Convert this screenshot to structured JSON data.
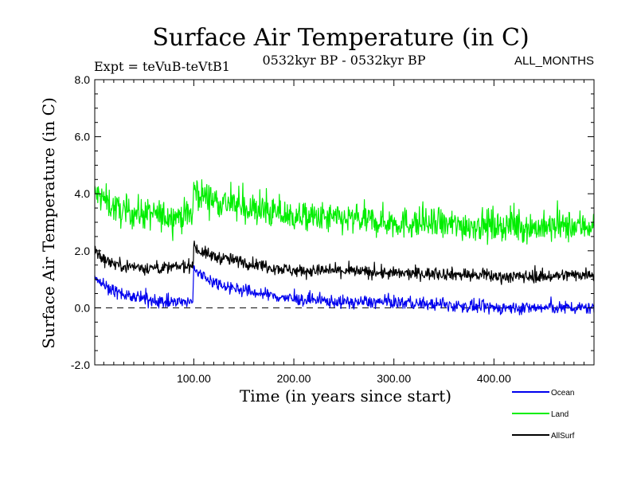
{
  "chart_data": {
    "type": "line",
    "title": "Surface Air Temperature (in C)",
    "subtitle": "0532kyr BP - 0532kyr BP",
    "expt_label": "Expt = teVuB-teVtB1",
    "months_label": "ALL_MONTHS",
    "xlabel": "Time (in years since start)",
    "ylabel": "Surface Air Temperature (in C)",
    "xlim": [
      1,
      500
    ],
    "ylim": [
      -2.0,
      8.0
    ],
    "x_ticks": [
      100,
      200,
      300,
      400
    ],
    "x_tick_labels": [
      "100.00",
      "200.00",
      "300.00",
      "400.00"
    ],
    "y_ticks": [
      -2,
      0,
      2,
      4,
      6,
      8
    ],
    "y_tick_labels": [
      "-2.0",
      "0.0",
      "2.0",
      "4.0",
      "6.0",
      "8.0"
    ],
    "reference_line": 0.0,
    "series": [
      {
        "name": "Land",
        "color": "#00ee00",
        "description": "annual values, ~3.5 early, jump at year 100, declining to ~2.9",
        "x": [
          1,
          10,
          25,
          50,
          75,
          99,
          100,
          105,
          120,
          150,
          200,
          250,
          300,
          350,
          400,
          450,
          500
        ],
        "values": [
          4.0,
          3.8,
          3.4,
          3.3,
          3.2,
          3.3,
          4.2,
          4.0,
          3.8,
          3.5,
          3.2,
          3.1,
          3.0,
          2.9,
          2.9,
          2.8,
          2.9
        ],
        "noise": 0.55
      },
      {
        "name": "AllSurf",
        "color": "#000000",
        "description": "annual values, ~1.6 early, jump at year 100, declining to ~1.1",
        "x": [
          1,
          10,
          25,
          50,
          75,
          99,
          100,
          105,
          120,
          150,
          200,
          250,
          300,
          350,
          400,
          450,
          500
        ],
        "values": [
          2.0,
          1.7,
          1.5,
          1.4,
          1.4,
          1.5,
          2.2,
          2.0,
          1.8,
          1.6,
          1.3,
          1.3,
          1.2,
          1.2,
          1.1,
          1.1,
          1.2
        ],
        "noise": 0.22
      },
      {
        "name": "Ocean",
        "color": "#0000ee",
        "description": "annual values, ~0.6 early, jump at year 100, declining to ~0.0",
        "x": [
          1,
          10,
          25,
          50,
          75,
          99,
          100,
          105,
          120,
          150,
          200,
          250,
          300,
          350,
          400,
          450,
          500
        ],
        "values": [
          1.1,
          0.8,
          0.5,
          0.3,
          0.2,
          0.2,
          1.4,
          1.2,
          0.9,
          0.6,
          0.3,
          0.2,
          0.2,
          0.1,
          0.0,
          0.0,
          0.0
        ],
        "noise": 0.22
      }
    ],
    "legend": {
      "placement": "bottom-right",
      "entries": [
        {
          "name": "Ocean",
          "color": "#0000ee"
        },
        {
          "name": "Land",
          "color": "#00ee00"
        },
        {
          "name": "AllSurf",
          "color": "#000000"
        }
      ]
    }
  }
}
